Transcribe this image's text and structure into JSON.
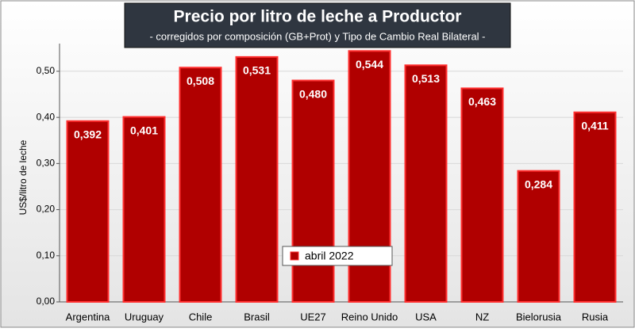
{
  "chart_data": {
    "type": "bar",
    "title": "Precio por litro de leche a Productor",
    "subtitle": "-  corregidos por composición (GB+Prot) y Tipo de Cambio Real Bilateral -",
    "y_label": "US$/litro de leche",
    "categories": [
      "Argentina",
      "Uruguay",
      "Chile",
      "Brasil",
      "UE27",
      "Reino Unido",
      "USA",
      "NZ",
      "Bielorusia",
      "Rusia"
    ],
    "series": [
      {
        "name": "abril 2022",
        "color": "#b00000",
        "values": [
          0.392,
          0.401,
          0.508,
          0.531,
          0.48,
          0.544,
          0.513,
          0.463,
          0.284,
          0.411
        ],
        "value_labels": [
          "0,392",
          "0,401",
          "0,508",
          "0,531",
          "0,480",
          "0,544",
          "0,513",
          "0,463",
          "0,284",
          "0,411"
        ]
      }
    ],
    "ylim": [
      0,
      0.56
    ],
    "yticks": [
      {
        "value": 0,
        "label": "0,00"
      },
      {
        "value": 0.1,
        "label": "0,10"
      },
      {
        "value": 0.2,
        "label": "0,20"
      },
      {
        "value": 0.3,
        "label": "0,30"
      },
      {
        "value": 0.4,
        "label": "0,40"
      },
      {
        "value": 0.5,
        "label": "0,50"
      }
    ],
    "grid": true,
    "legend": "bottom-center"
  }
}
